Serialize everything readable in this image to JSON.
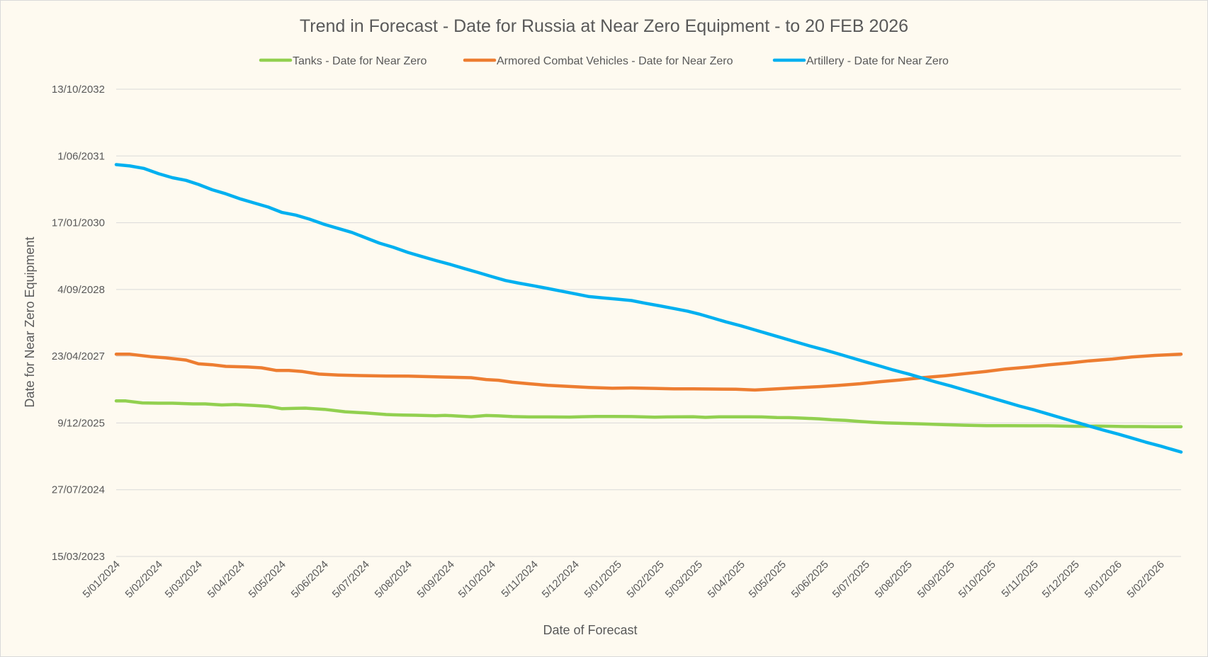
{
  "chart_data": {
    "type": "line",
    "title": "Trend in Forecast - Date for Russia at Near Zero Equipment - to 20 FEB 2026",
    "xlabel": "Date of Forecast",
    "ylabel": "Date for Near Zero Equipment",
    "x_tick_labels": [
      "5/01/2024",
      "5/02/2024",
      "5/03/2024",
      "5/04/2024",
      "5/05/2024",
      "5/06/2024",
      "5/07/2024",
      "5/08/2024",
      "5/09/2024",
      "5/10/2024",
      "5/11/2024",
      "5/12/2024",
      "5/01/2025",
      "5/02/2025",
      "5/03/2025",
      "5/04/2025",
      "5/05/2025",
      "5/06/2025",
      "5/07/2025",
      "5/08/2025",
      "5/09/2025",
      "5/10/2025",
      "5/11/2025",
      "5/12/2025",
      "5/01/2026",
      "5/02/2026"
    ],
    "y_tick_labels": [
      "15/03/2023",
      "27/07/2024",
      "9/12/2025",
      "23/04/2027",
      "4/09/2028",
      "17/01/2030",
      "1/06/2031",
      "13/10/2032"
    ],
    "xlim": [
      "2024-01-05",
      "2026-02-20"
    ],
    "ylim": [
      "2023-03-15",
      "2032-10-13"
    ],
    "grid": true,
    "legend": "top",
    "series": [
      {
        "name": "Tanks - Date for Near Zero",
        "color": "#92d050",
        "points": [
          [
            "2024-01-05",
            "2026-05-23"
          ],
          [
            "2024-01-12",
            "2026-05-23"
          ],
          [
            "2024-01-24",
            "2026-05-08"
          ],
          [
            "2024-02-05",
            "2026-05-06"
          ],
          [
            "2024-02-15",
            "2026-05-06"
          ],
          [
            "2024-03-01",
            "2026-05-01"
          ],
          [
            "2024-03-10",
            "2026-05-01"
          ],
          [
            "2024-03-22",
            "2026-04-23"
          ],
          [
            "2024-04-01",
            "2026-04-26"
          ],
          [
            "2024-04-15",
            "2026-04-19"
          ],
          [
            "2024-04-25",
            "2026-04-12"
          ],
          [
            "2024-05-05",
            "2026-03-26"
          ],
          [
            "2024-05-15",
            "2026-03-29"
          ],
          [
            "2024-05-22",
            "2026-03-30"
          ],
          [
            "2024-06-05",
            "2026-03-21"
          ],
          [
            "2024-06-20",
            "2026-03-03"
          ],
          [
            "2024-07-01",
            "2026-02-24"
          ],
          [
            "2024-07-05",
            "2026-02-22"
          ],
          [
            "2024-07-20",
            "2026-02-10"
          ],
          [
            "2024-07-25",
            "2026-02-08"
          ],
          [
            "2024-08-01",
            "2026-02-06"
          ],
          [
            "2024-08-10",
            "2026-02-05"
          ],
          [
            "2024-08-25",
            "2026-02-01"
          ],
          [
            "2024-09-01",
            "2026-02-04"
          ],
          [
            "2024-09-10",
            "2026-01-30"
          ],
          [
            "2024-09-20",
            "2026-01-25"
          ],
          [
            "2024-10-01",
            "2026-02-03"
          ],
          [
            "2024-10-10",
            "2026-01-31"
          ],
          [
            "2024-10-20",
            "2026-01-26"
          ],
          [
            "2024-11-01",
            "2026-01-23"
          ],
          [
            "2024-11-15",
            "2026-01-23"
          ],
          [
            "2024-12-01",
            "2026-01-22"
          ],
          [
            "2024-12-10",
            "2026-01-25"
          ],
          [
            "2024-12-20",
            "2026-01-27"
          ],
          [
            "2025-01-01",
            "2026-01-27"
          ],
          [
            "2025-01-15",
            "2026-01-26"
          ],
          [
            "2025-02-01",
            "2026-01-21"
          ],
          [
            "2025-02-10",
            "2026-01-23"
          ],
          [
            "2025-02-20",
            "2026-01-24"
          ],
          [
            "2025-03-01",
            "2026-01-25"
          ],
          [
            "2025-03-10",
            "2026-01-20"
          ],
          [
            "2025-03-20",
            "2026-01-24"
          ],
          [
            "2025-04-01",
            "2026-01-24"
          ],
          [
            "2025-04-10",
            "2026-01-24"
          ],
          [
            "2025-04-20",
            "2026-01-23"
          ],
          [
            "2025-05-01",
            "2026-01-19"
          ],
          [
            "2025-05-10",
            "2026-01-18"
          ],
          [
            "2025-05-20",
            "2026-01-14"
          ],
          [
            "2025-06-01",
            "2026-01-09"
          ],
          [
            "2025-06-10",
            "2026-01-02"
          ],
          [
            "2025-06-20",
            "2025-12-29"
          ],
          [
            "2025-07-01",
            "2025-12-20"
          ],
          [
            "2025-07-10",
            "2025-12-14"
          ],
          [
            "2025-07-20",
            "2025-12-09"
          ],
          [
            "2025-08-01",
            "2025-12-06"
          ],
          [
            "2025-08-15",
            "2025-12-02"
          ],
          [
            "2025-09-01",
            "2025-11-26"
          ],
          [
            "2025-09-15",
            "2025-11-22"
          ],
          [
            "2025-10-01",
            "2025-11-19"
          ],
          [
            "2025-10-15",
            "2025-11-19"
          ],
          [
            "2025-11-01",
            "2025-11-18"
          ],
          [
            "2025-11-15",
            "2025-11-18"
          ],
          [
            "2025-12-01",
            "2025-11-15"
          ],
          [
            "2025-12-10",
            "2025-11-14"
          ],
          [
            "2025-12-20",
            "2025-11-16"
          ],
          [
            "2026-01-01",
            "2025-11-14"
          ],
          [
            "2026-01-10",
            "2025-11-12"
          ],
          [
            "2026-01-20",
            "2025-11-12"
          ],
          [
            "2026-02-01",
            "2025-11-11"
          ],
          [
            "2026-02-10",
            "2025-11-11"
          ],
          [
            "2026-02-20",
            "2025-11-11"
          ]
        ]
      },
      {
        "name": "Armored Combat Vehicles - Date for Near Zero",
        "color": "#ed7d31",
        "points": [
          [
            "2024-01-05",
            "2027-05-08"
          ],
          [
            "2024-01-15",
            "2027-05-08"
          ],
          [
            "2024-01-30",
            "2027-04-20"
          ],
          [
            "2024-02-10",
            "2027-04-11"
          ],
          [
            "2024-02-25",
            "2027-03-25"
          ],
          [
            "2024-03-05",
            "2027-02-25"
          ],
          [
            "2024-03-15",
            "2027-02-18"
          ],
          [
            "2024-03-25",
            "2027-02-06"
          ],
          [
            "2024-04-10",
            "2027-02-01"
          ],
          [
            "2024-04-20",
            "2027-01-26"
          ],
          [
            "2024-05-01",
            "2027-01-06"
          ],
          [
            "2024-05-10",
            "2027-01-06"
          ],
          [
            "2024-05-20",
            "2026-12-29"
          ],
          [
            "2024-06-01",
            "2026-12-10"
          ],
          [
            "2024-06-15",
            "2026-12-03"
          ],
          [
            "2024-07-01",
            "2026-11-29"
          ],
          [
            "2024-07-20",
            "2026-11-26"
          ],
          [
            "2024-08-05",
            "2026-11-25"
          ],
          [
            "2024-08-15",
            "2026-11-22"
          ],
          [
            "2024-09-01",
            "2026-11-18"
          ],
          [
            "2024-09-20",
            "2026-11-13"
          ],
          [
            "2024-10-01",
            "2026-10-30"
          ],
          [
            "2024-10-10",
            "2026-10-25"
          ],
          [
            "2024-10-20",
            "2026-10-10"
          ],
          [
            "2024-11-01",
            "2026-09-29"
          ],
          [
            "2024-11-15",
            "2026-09-17"
          ],
          [
            "2024-12-01",
            "2026-09-08"
          ],
          [
            "2024-12-15",
            "2026-09-01"
          ],
          [
            "2025-01-01",
            "2026-08-26"
          ],
          [
            "2025-01-15",
            "2026-08-28"
          ],
          [
            "2025-02-01",
            "2026-08-25"
          ],
          [
            "2025-02-15",
            "2026-08-22"
          ],
          [
            "2025-03-01",
            "2026-08-22"
          ],
          [
            "2025-03-15",
            "2026-08-20"
          ],
          [
            "2025-04-01",
            "2026-08-19"
          ],
          [
            "2025-04-15",
            "2026-08-13"
          ],
          [
            "2025-05-01",
            "2026-08-21"
          ],
          [
            "2025-05-15",
            "2026-08-29"
          ],
          [
            "2025-06-01",
            "2026-09-07"
          ],
          [
            "2025-06-15",
            "2026-09-16"
          ],
          [
            "2025-07-01",
            "2026-09-29"
          ],
          [
            "2025-07-15",
            "2026-10-13"
          ],
          [
            "2025-08-01",
            "2026-10-29"
          ],
          [
            "2025-08-15",
            "2026-11-13"
          ],
          [
            "2025-09-01",
            "2026-11-28"
          ],
          [
            "2025-09-15",
            "2026-12-13"
          ],
          [
            "2025-10-01",
            "2026-12-30"
          ],
          [
            "2025-10-15",
            "2027-01-17"
          ],
          [
            "2025-11-01",
            "2027-02-01"
          ],
          [
            "2025-11-15",
            "2027-02-17"
          ],
          [
            "2025-12-01",
            "2027-03-04"
          ],
          [
            "2025-12-15",
            "2027-03-19"
          ],
          [
            "2026-01-01",
            "2027-04-02"
          ],
          [
            "2026-01-15",
            "2027-04-17"
          ],
          [
            "2026-02-01",
            "2027-04-29"
          ],
          [
            "2026-02-20",
            "2027-05-08"
          ]
        ]
      },
      {
        "name": "Artillery - Date for Near Zero",
        "color": "#00b0f0",
        "points": [
          [
            "2024-01-05",
            "2031-03-28"
          ],
          [
            "2024-01-15",
            "2031-03-18"
          ],
          [
            "2024-01-25",
            "2031-02-28"
          ],
          [
            "2024-02-05",
            "2031-01-19"
          ],
          [
            "2024-02-15",
            "2030-12-20"
          ],
          [
            "2024-02-25",
            "2030-11-30"
          ],
          [
            "2024-03-05",
            "2030-10-31"
          ],
          [
            "2024-03-15",
            "2030-09-21"
          ],
          [
            "2024-03-25",
            "2030-08-22"
          ],
          [
            "2024-04-05",
            "2030-07-13"
          ],
          [
            "2024-04-15",
            "2030-06-13"
          ],
          [
            "2024-04-25",
            "2030-05-14"
          ],
          [
            "2024-05-05",
            "2030-04-04"
          ],
          [
            "2024-05-15",
            "2030-03-15"
          ],
          [
            "2024-05-25",
            "2030-02-13"
          ],
          [
            "2024-06-05",
            "2030-01-04"
          ],
          [
            "2024-06-15",
            "2029-12-05"
          ],
          [
            "2024-06-25",
            "2029-11-05"
          ],
          [
            "2024-07-05",
            "2029-09-26"
          ],
          [
            "2024-07-15",
            "2029-08-17"
          ],
          [
            "2024-07-25",
            "2029-07-18"
          ],
          [
            "2024-08-05",
            "2029-06-08"
          ],
          [
            "2024-08-15",
            "2029-05-09"
          ],
          [
            "2024-08-25",
            "2029-04-09"
          ],
          [
            "2024-09-05",
            "2029-03-10"
          ],
          [
            "2024-09-15",
            "2029-02-08"
          ],
          [
            "2024-09-25",
            "2029-01-09"
          ],
          [
            "2024-10-05",
            "2028-12-10"
          ],
          [
            "2024-10-15",
            "2028-11-10"
          ],
          [
            "2024-10-25",
            "2028-10-21"
          ],
          [
            "2024-11-05",
            "2028-10-01"
          ],
          [
            "2024-11-15",
            "2028-09-11"
          ],
          [
            "2024-11-25",
            "2028-08-22"
          ],
          [
            "2024-12-05",
            "2028-08-02"
          ],
          [
            "2024-12-15",
            "2028-07-13"
          ],
          [
            "2024-12-25",
            "2028-07-03"
          ],
          [
            "2025-01-05",
            "2028-06-23"
          ],
          [
            "2025-01-15",
            "2028-06-13"
          ],
          [
            "2025-01-25",
            "2028-05-24"
          ],
          [
            "2025-02-05",
            "2028-05-04"
          ],
          [
            "2025-02-15",
            "2028-04-14"
          ],
          [
            "2025-02-25",
            "2028-03-25"
          ],
          [
            "2025-03-05",
            "2028-03-05"
          ],
          [
            "2025-03-15",
            "2028-02-04"
          ],
          [
            "2025-03-25",
            "2028-01-05"
          ],
          [
            "2025-04-05",
            "2027-12-06"
          ],
          [
            "2025-04-15",
            "2027-11-06"
          ],
          [
            "2025-04-25",
            "2027-10-07"
          ],
          [
            "2025-05-05",
            "2027-09-07"
          ],
          [
            "2025-05-15",
            "2027-08-08"
          ],
          [
            "2025-05-25",
            "2027-07-09"
          ],
          [
            "2025-06-05",
            "2027-06-09"
          ],
          [
            "2025-06-15",
            "2027-05-10"
          ],
          [
            "2025-06-25",
            "2027-04-10"
          ],
          [
            "2025-07-05",
            "2027-03-11"
          ],
          [
            "2025-07-15",
            "2027-02-09"
          ],
          [
            "2025-07-25",
            "2027-01-10"
          ],
          [
            "2025-08-05",
            "2026-12-11"
          ],
          [
            "2025-08-15",
            "2026-11-11"
          ],
          [
            "2025-08-25",
            "2026-10-12"
          ],
          [
            "2025-09-05",
            "2026-09-12"
          ],
          [
            "2025-09-15",
            "2026-08-13"
          ],
          [
            "2025-09-25",
            "2026-07-14"
          ],
          [
            "2025-10-05",
            "2026-06-14"
          ],
          [
            "2025-10-15",
            "2026-05-15"
          ],
          [
            "2025-10-25",
            "2026-04-15"
          ],
          [
            "2025-11-05",
            "2026-03-16"
          ],
          [
            "2025-11-15",
            "2026-02-14"
          ],
          [
            "2025-11-25",
            "2026-01-15"
          ],
          [
            "2025-12-05",
            "2025-12-16"
          ],
          [
            "2025-12-15",
            "2025-11-16"
          ],
          [
            "2025-12-25",
            "2025-10-17"
          ],
          [
            "2026-01-05",
            "2025-09-17"
          ],
          [
            "2026-01-15",
            "2025-08-18"
          ],
          [
            "2026-01-25",
            "2025-07-19"
          ],
          [
            "2026-02-05",
            "2025-06-19"
          ],
          [
            "2026-02-15",
            "2025-05-20"
          ],
          [
            "2026-02-20",
            "2025-05-05"
          ]
        ]
      }
    ]
  }
}
